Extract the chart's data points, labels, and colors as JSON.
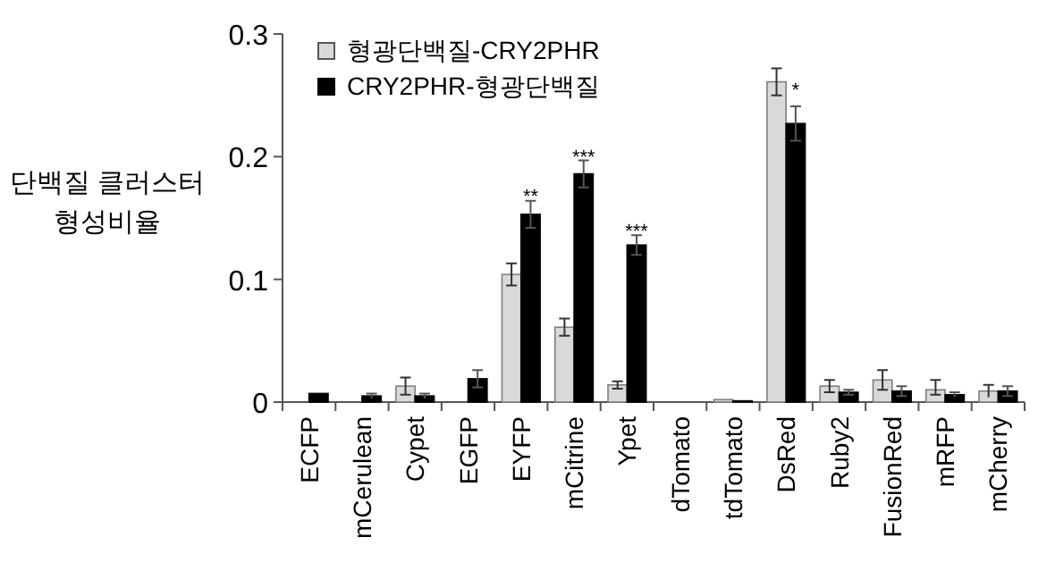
{
  "chart_data": {
    "type": "bar",
    "ylabel": "단백질 클러스터\n형성비율",
    "categories": [
      "ECFP",
      "mCerulean",
      "Cypet",
      "EGFP",
      "EYFP",
      "mCitrine",
      "Ypet",
      "dTomato",
      "tdTomato",
      "DsRed",
      "Ruby2",
      "FusionRed",
      "mRFP",
      "mCherry"
    ],
    "series": [
      {
        "name": "형광단백질-CRY2PHR",
        "color": "#d9d9d9",
        "values": [
          0,
          0,
          0.013,
          0,
          0.104,
          0.061,
          0.014,
          0,
          0.002,
          0.261,
          0.013,
          0.018,
          0.01,
          0.009
        ],
        "errors": [
          null,
          null,
          0.007,
          null,
          0.009,
          0.007,
          0.003,
          null,
          null,
          0.011,
          0.005,
          0.008,
          [
            0.006,
            0.018
          ],
          0.005
        ]
      },
      {
        "name": "CRY2PHR-형광단백질",
        "color": "#000000",
        "values": [
          0.007,
          0.005,
          0.005,
          0.019,
          0.153,
          0.186,
          0.128,
          0,
          0.001,
          0.227,
          0.008,
          0.009,
          0.006,
          0.009
        ],
        "errors": [
          null,
          0.002,
          0.002,
          0.007,
          0.011,
          0.011,
          0.008,
          null,
          null,
          0.014,
          0.002,
          0.004,
          0.002,
          0.004
        ]
      }
    ],
    "ylim": [
      0,
      0.3
    ],
    "yticks": [
      0,
      0.1,
      0.2,
      0.3
    ],
    "grid": false,
    "legend": "top left",
    "annotations": [
      {
        "text": "**",
        "x": "EYFP",
        "y": 0.168
      },
      {
        "text": "***",
        "x": "mCitrine",
        "y": 0.2
      },
      {
        "text": "***",
        "x": "Ypet",
        "y": 0.14
      },
      {
        "text": "*",
        "x": "DsRed",
        "y": 0.255
      }
    ]
  }
}
